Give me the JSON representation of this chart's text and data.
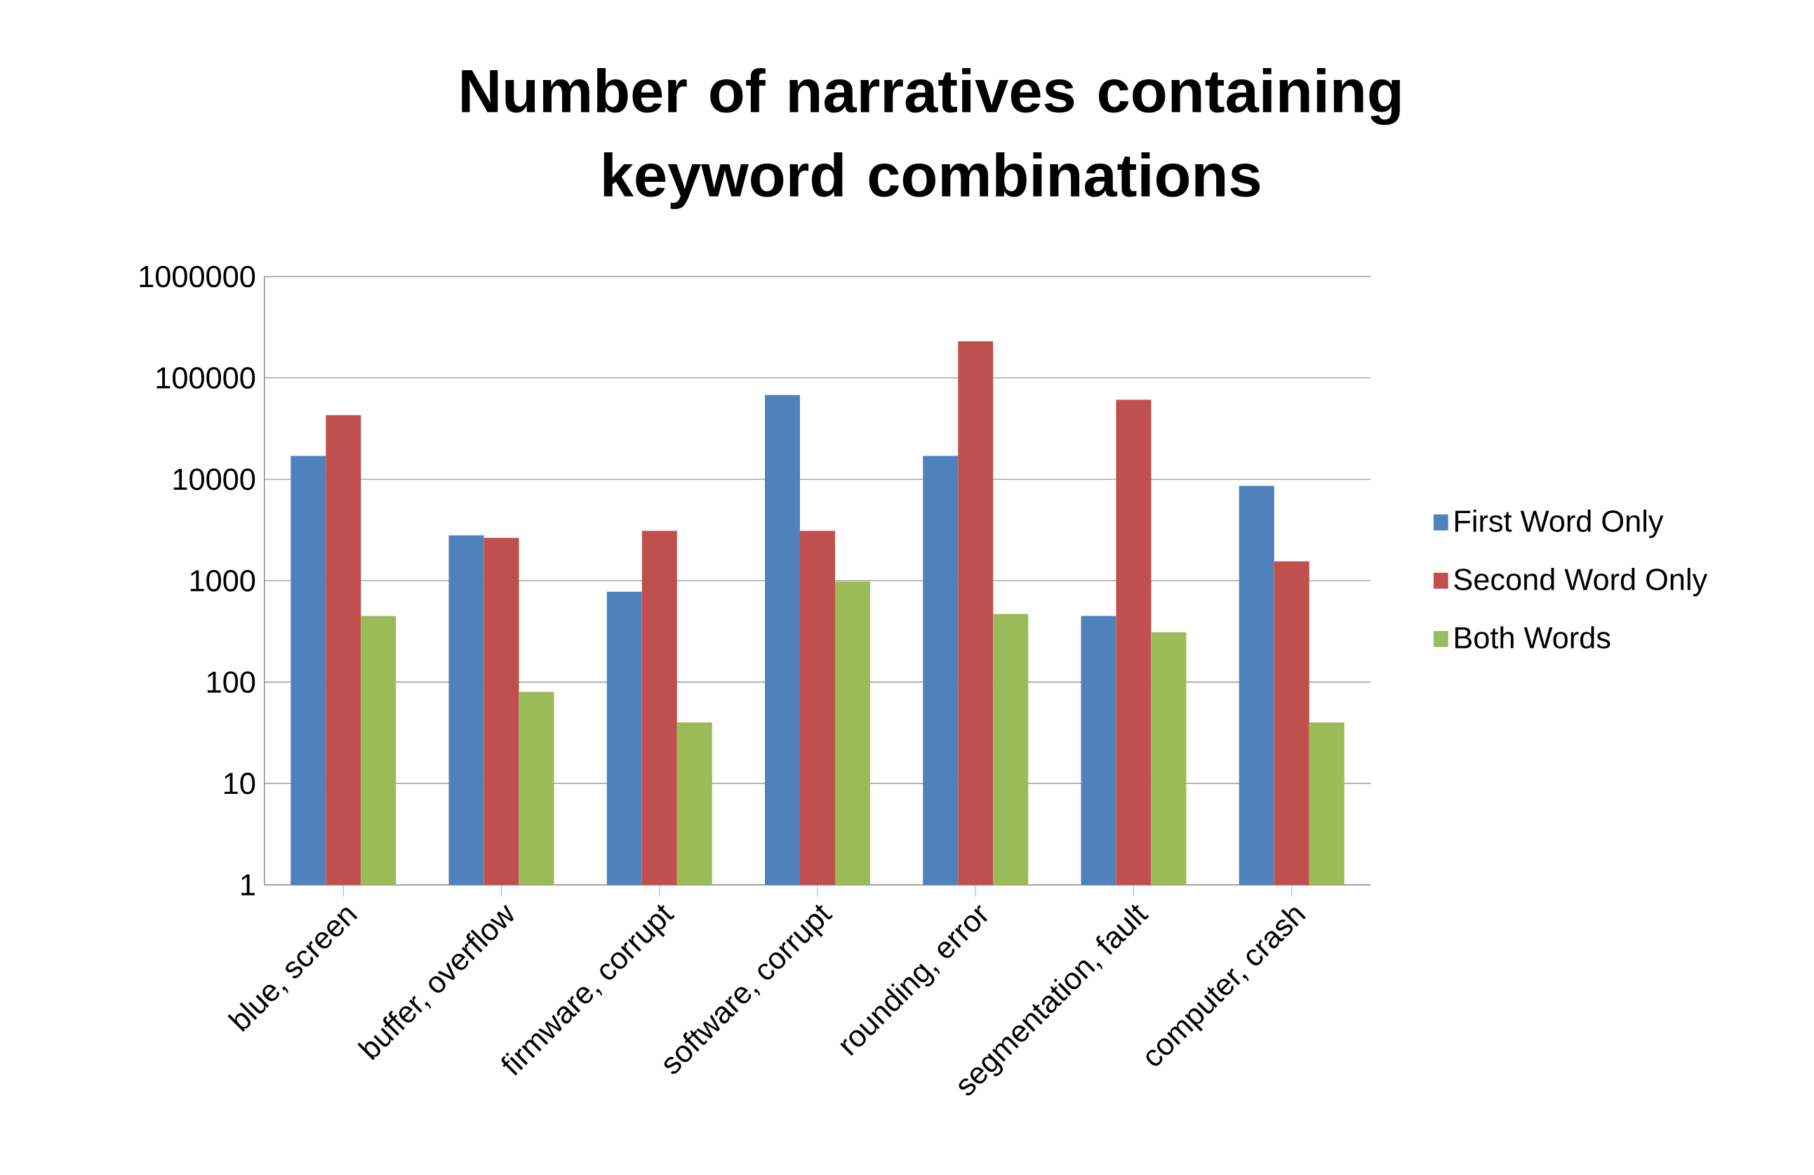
{
  "chart_data": {
    "type": "bar",
    "title": "Number of narratives containing keyword combinations",
    "categories": [
      "blue, screen",
      "buffer, overflow",
      "firmware, corrupt",
      "software, corrupt",
      "rounding, error",
      "segmentation, fault",
      "computer, crash"
    ],
    "series": [
      {
        "name": "First Word Only",
        "color": "#4f81bd",
        "values": [
          17000,
          2800,
          780,
          68000,
          17000,
          450,
          8600
        ]
      },
      {
        "name": "Second Word Only",
        "color": "#c0504d",
        "values": [
          43000,
          2650,
          3100,
          3100,
          230000,
          61000,
          1550
        ]
      },
      {
        "name": "Both Words",
        "color": "#9bbb59",
        "values": [
          450,
          80,
          40,
          980,
          470,
          310,
          40
        ]
      }
    ],
    "log": true,
    "ylim": [
      1,
      1000000
    ],
    "yticks": [
      1,
      10,
      100,
      1000,
      10000,
      100000,
      1000000
    ],
    "grid": "y",
    "legend": "right"
  }
}
